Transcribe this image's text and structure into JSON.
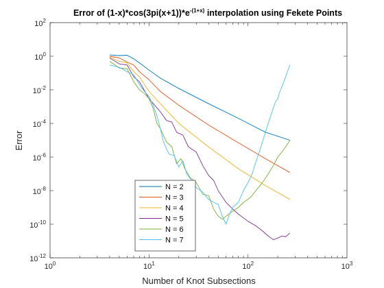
{
  "chart_data": {
    "type": "line",
    "title_main": "Error of (1-x)*cos(3pi(x+1))*e",
    "title_exp": "-(1+x)",
    "title_rest": " interpolation using Fekete Points",
    "xlabel": "Number of Knot Subsections",
    "ylabel": "Error",
    "x_scale": "log",
    "y_scale": "log",
    "xlim": [
      1,
      1000
    ],
    "ylim": [
      1e-12,
      100
    ],
    "x_ticks": [
      {
        "base": "10",
        "exp": "0",
        "value": 1
      },
      {
        "base": "10",
        "exp": "1",
        "value": 10
      },
      {
        "base": "10",
        "exp": "2",
        "value": 100
      },
      {
        "base": "10",
        "exp": "3",
        "value": 1000
      }
    ],
    "y_ticks": [
      {
        "base": "10",
        "exp": "2",
        "value": 100
      },
      {
        "base": "10",
        "exp": "0",
        "value": 1
      },
      {
        "base": "10",
        "exp": "-2",
        "value": 0.01
      },
      {
        "base": "10",
        "exp": "-4",
        "value": 0.0001
      },
      {
        "base": "10",
        "exp": "-6",
        "value": 1e-06
      },
      {
        "base": "10",
        "exp": "-8",
        "value": 1e-08
      },
      {
        "base": "10",
        "exp": "-10",
        "value": 1e-10
      },
      {
        "base": "10",
        "exp": "-12",
        "value": 1e-12
      }
    ],
    "grid": false,
    "legend_position": "bottom-center",
    "series": [
      {
        "name": "N = 2",
        "color": "#0072BD",
        "points": [
          [
            4,
            1.2
          ],
          [
            5,
            1.1
          ],
          [
            6,
            1.15
          ],
          [
            7,
            0.7
          ],
          [
            8,
            0.4
          ],
          [
            10,
            0.15
          ],
          [
            13,
            0.05
          ],
          [
            20,
            0.012
          ],
          [
            40,
            0.0015
          ],
          [
            80,
            0.0002
          ],
          [
            150,
            3e-05
          ],
          [
            265,
            1e-05
          ]
        ]
      },
      {
        "name": "N = 3",
        "color": "#D95319",
        "points": [
          [
            4,
            1.0
          ],
          [
            5,
            0.8
          ],
          [
            6,
            0.45
          ],
          [
            7,
            0.3
          ],
          [
            8,
            0.12
          ],
          [
            10,
            0.04
          ],
          [
            13,
            0.008
          ],
          [
            20,
            0.0012
          ],
          [
            40,
            8e-05
          ],
          [
            80,
            7e-06
          ],
          [
            150,
            8e-07
          ],
          [
            265,
            1.2e-07
          ]
        ]
      },
      {
        "name": "N = 4",
        "color": "#EDB120",
        "points": [
          [
            4,
            0.9
          ],
          [
            5,
            0.5
          ],
          [
            6,
            0.4
          ],
          [
            7,
            0.12
          ],
          [
            8,
            0.06
          ],
          [
            10,
            0.008
          ],
          [
            13,
            0.0015
          ],
          [
            20,
            0.0001
          ],
          [
            40,
            4e-06
          ],
          [
            80,
            2e-07
          ],
          [
            150,
            2e-08
          ],
          [
            265,
            3e-09
          ]
        ]
      },
      {
        "name": "N = 5",
        "color": "#7E2F8E",
        "points": [
          [
            4,
            0.8
          ],
          [
            5,
            0.35
          ],
          [
            6,
            0.3
          ],
          [
            7,
            0.06
          ],
          [
            8,
            0.03
          ],
          [
            10,
            0.003
          ],
          [
            13,
            0.0005
          ],
          [
            15,
            0.00015
          ],
          [
            17,
            0.00012
          ],
          [
            19,
            3e-05
          ],
          [
            22,
            2e-05
          ],
          [
            25,
            4e-06
          ],
          [
            30,
            2e-06
          ],
          [
            35,
            3e-07
          ],
          [
            40,
            8e-08
          ],
          [
            45,
            4e-08
          ],
          [
            50,
            1e-08
          ],
          [
            60,
            2e-09
          ],
          [
            70,
            8e-10
          ],
          [
            80,
            4e-10
          ],
          [
            100,
            1.5e-10
          ],
          [
            120,
            8e-11
          ],
          [
            140,
            4e-11
          ],
          [
            160,
            2e-11
          ],
          [
            180,
            1.2e-11
          ],
          [
            200,
            1.5e-11
          ],
          [
            220,
            2e-11
          ],
          [
            240,
            1.8e-11
          ],
          [
            265,
            3e-11
          ]
        ]
      },
      {
        "name": "N = 6",
        "color": "#77AC30",
        "points": [
          [
            4,
            0.5
          ],
          [
            5,
            0.2
          ],
          [
            6,
            0.18
          ],
          [
            7,
            0.03
          ],
          [
            8,
            0.01
          ],
          [
            9,
            0.006
          ],
          [
            10,
            0.003
          ],
          [
            11,
            0.0008
          ],
          [
            12,
            0.0001
          ],
          [
            13,
            5e-05
          ],
          [
            15,
            8e-06
          ],
          [
            17,
            4e-06
          ],
          [
            19,
            4e-07
          ],
          [
            21,
            8e-07
          ],
          [
            23,
            2e-07
          ],
          [
            26,
            6e-08
          ],
          [
            30,
            3e-08
          ],
          [
            35,
            6e-09
          ],
          [
            40,
            5e-09
          ],
          [
            45,
            8e-10
          ],
          [
            50,
            3e-10
          ],
          [
            55,
            2e-10
          ],
          [
            60,
            3e-10
          ],
          [
            70,
            6e-10
          ],
          [
            80,
            1e-09
          ],
          [
            90,
            2e-09
          ],
          [
            100,
            3e-09
          ],
          [
            110,
            5e-09
          ],
          [
            120,
            1e-08
          ],
          [
            140,
            3e-08
          ],
          [
            160,
            1e-07
          ],
          [
            180,
            3e-07
          ],
          [
            200,
            1e-06
          ],
          [
            220,
            2e-06
          ],
          [
            240,
            4e-06
          ],
          [
            265,
            1e-05
          ]
        ]
      },
      {
        "name": "N = 7",
        "color": "#4DBEEE",
        "points": [
          [
            4,
            0.3
          ],
          [
            5,
            0.22
          ],
          [
            6,
            0.12
          ],
          [
            7,
            0.08
          ],
          [
            8,
            0.02
          ],
          [
            9,
            0.008
          ],
          [
            10,
            0.004
          ],
          [
            11,
            0.0012
          ],
          [
            12,
            0.0003
          ],
          [
            13,
            5e-05
          ],
          [
            14,
            8e-06
          ],
          [
            15,
            3e-06
          ],
          [
            16,
            1.5e-06
          ],
          [
            18,
            1.2e-06
          ],
          [
            20,
            2.5e-07
          ],
          [
            22,
            6e-07
          ],
          [
            24,
            1e-07
          ],
          [
            27,
            4e-08
          ],
          [
            30,
            1.5e-08
          ],
          [
            35,
            8e-09
          ],
          [
            40,
            3e-09
          ],
          [
            45,
            2e-09
          ],
          [
            50,
            1.5e-09
          ],
          [
            55,
            3e-10
          ],
          [
            60,
            1e-10
          ],
          [
            65,
            4e-10
          ],
          [
            70,
            1e-09
          ],
          [
            80,
            2e-09
          ],
          [
            90,
            1e-08
          ],
          [
            100,
            3e-08
          ],
          [
            110,
            1e-07
          ],
          [
            120,
            5e-07
          ],
          [
            130,
            2e-06
          ],
          [
            140,
            8e-06
          ],
          [
            150,
            3e-05
          ],
          [
            160,
            0.0001
          ],
          [
            170,
            0.0003
          ],
          [
            180,
            0.0008
          ],
          [
            190,
            0.002
          ],
          [
            200,
            0.003
          ],
          [
            210,
            0.008
          ],
          [
            220,
            0.015
          ],
          [
            230,
            0.03
          ],
          [
            240,
            0.06
          ],
          [
            250,
            0.12
          ],
          [
            265,
            0.3
          ]
        ]
      }
    ]
  }
}
